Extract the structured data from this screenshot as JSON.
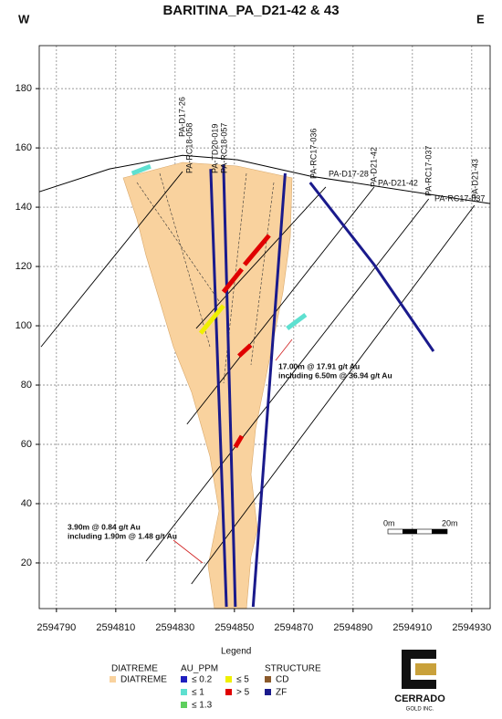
{
  "chart_data": {
    "type": "section",
    "title": "BARITINA_PA_D21-42 & 43",
    "west_label": "W",
    "east_label": "E",
    "xlim": [
      2594784.2,
      2594936.2
    ],
    "ylim": [
      4.6,
      194.5
    ],
    "xticks": [
      2594790,
      2594810,
      2594830,
      2594850,
      2594870,
      2594890,
      2594910,
      2594930
    ],
    "yticks": [
      20,
      40,
      60,
      80,
      100,
      120,
      140,
      160,
      180
    ],
    "grid": true,
    "topography": {
      "x": [
        2594784.2,
        2594807.9,
        2594832.5,
        2594851,
        2594875.5,
        2594936.2
      ],
      "y": [
        145.2,
        152.9,
        157.5,
        156,
        150.5,
        141.2
      ],
      "color": "#000000"
    },
    "holes": [
      {
        "name": "PA-D21-42",
        "x": [
          2594897.1,
          2594834
        ],
        "y": [
          146.8,
          66.8
        ],
        "color": "#000000"
      },
      {
        "name": "PA-RC17-037",
        "x": [
          2594915.5,
          2594820.2
        ],
        "y": [
          142.8,
          20.6
        ],
        "color": "#000000"
      },
      {
        "name": "PA-D21-43",
        "x": [
          2594930.9,
          2594835.5
        ],
        "y": [
          140.6,
          12.9
        ],
        "color": "#000000"
      },
      {
        "name": "PA-D17-26",
        "x": [
          2594832.5,
          2594784.8
        ],
        "y": [
          152,
          92.9
        ],
        "color": "#000000"
      },
      {
        "name": "PA-D17-28",
        "x": [
          2594880.8,
          2594837.1
        ],
        "y": [
          146.8,
          99.1
        ],
        "color": "#000000"
      },
      {
        "name": "PA-RC17-036",
        "x": [
          2594875.5,
          2594897.1,
          2594917.1
        ],
        "y": [
          148.3,
          120.6,
          91.4
        ],
        "color": "#1a1a8c"
      },
      {
        "name": "PA-RC18-057",
        "x": [
          2594867.1,
          2594856.3
        ],
        "y": [
          151.4,
          5.2
        ],
        "color": "#1a1a8c"
      },
      {
        "name": "PA-TD20-019",
        "x": [
          2594842,
          2594847.3
        ],
        "y": [
          152.9,
          5.2
        ],
        "color": "#1a1a8c"
      },
      {
        "name": "PA-RC18-058",
        "x": [
          2594846.3,
          2594850.3
        ],
        "y": [
          154.4,
          5.2
        ],
        "color": "#1a1a8c"
      }
    ],
    "intervals": [
      {
        "x": [
          2594853.4,
          2594861.7
        ],
        "y": [
          120.6,
          130.5
        ],
        "color": "#e00000"
      },
      {
        "x": [
          2594846.3,
          2594852.5
        ],
        "y": [
          111.4,
          119.1
        ],
        "color": "#e00000"
      },
      {
        "x": [
          2594850.3,
          2594852.5
        ],
        "y": [
          59.1,
          62.8
        ],
        "color": "#e00000"
      },
      {
        "x": [
          2594851.5,
          2594855.5
        ],
        "y": [
          89.8,
          93.5
        ],
        "color": "#e00000"
      },
      {
        "x": [
          2594838.6,
          2594846.3
        ],
        "y": [
          97.5,
          106.8
        ],
        "color": "#f0f000"
      },
      {
        "x": [
          2594815.5,
          2594821.7
        ],
        "y": [
          151.4,
          153.8
        ],
        "color": "#5ee0d0"
      },
      {
        "x": [
          2594867.8,
          2594874
        ],
        "y": [
          99.1,
          103.7
        ],
        "color": "#5ee0d0"
      }
    ],
    "annotations": [
      "17.00m @ 17.91 g/t Au",
      "including 6.50m @ 36.94 g/t Au",
      "3.90m @ 0.84 g/t Au",
      "including 1.90m @ 1.48 g/t Au"
    ],
    "scale_labels": [
      "0m",
      "20m"
    ],
    "legend": {
      "title": "Legend",
      "groups": [
        {
          "name": "DIATREME",
          "items": [
            {
              "label": "DIATREME",
              "color": "#f9d29e"
            }
          ]
        },
        {
          "name": "AU_PPM",
          "items": [
            {
              "label": "≤ 0.2",
              "color": "#1f1fbf"
            },
            {
              "label": "≤ 1",
              "color": "#5ee0d0"
            },
            {
              "label": "≤ 1.3",
              "color": "#5ecf5e"
            },
            {
              "label": "≤ 5",
              "color": "#f0f000"
            },
            {
              "label": "> 5",
              "color": "#e00000"
            }
          ]
        },
        {
          "name": "STRUCTURE",
          "items": [
            {
              "label": "CD",
              "color": "#8b5a2b"
            },
            {
              "label": "ZF",
              "color": "#1a1a8c"
            }
          ]
        }
      ]
    },
    "logo": {
      "name": "CERRADO",
      "subtitle": "GOLD INC."
    }
  }
}
